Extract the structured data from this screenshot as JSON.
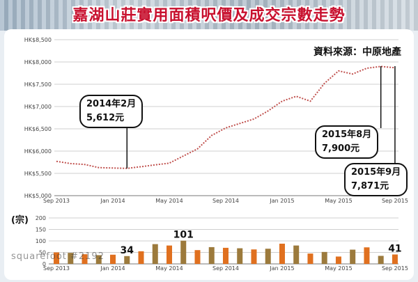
{
  "title": "嘉湖山莊實用面積呎價及成交宗數走勢",
  "source": "資料來源：中原地產",
  "watermark": "squarefoot #2192",
  "unit_label": "(宗)",
  "chart_data": [
    {
      "type": "line",
      "x_ticks": [
        "Sep 2013",
        "Jan 2014",
        "May 2014",
        "Sep 2014",
        "Jan 2015",
        "May 2015",
        "Sep 2015"
      ],
      "y_ticks": [
        "HK$5,000",
        "HK$5,500",
        "HK$6,000",
        "HK$6,500",
        "HK$7,000",
        "HK$7,500",
        "HK$8,000",
        "HK$8,500"
      ],
      "ylim": [
        5000,
        8500
      ],
      "grid": "horizontal",
      "series": [
        {
          "x": [
            "2013-09",
            "2013-10",
            "2013-11",
            "2013-12",
            "2014-01",
            "2014-02",
            "2014-03",
            "2014-04",
            "2014-05",
            "2014-06",
            "2014-07",
            "2014-08",
            "2014-09",
            "2014-10",
            "2014-11",
            "2014-12",
            "2015-01",
            "2015-02",
            "2015-03",
            "2015-04",
            "2015-05",
            "2015-06",
            "2015-07",
            "2015-08",
            "2015-09"
          ],
          "values": [
            5770,
            5720,
            5700,
            5630,
            5620,
            5612,
            5650,
            5690,
            5730,
            5890,
            6050,
            6350,
            6520,
            6620,
            6720,
            6900,
            7120,
            7230,
            7120,
            7520,
            7800,
            7730,
            7860,
            7900,
            7871
          ],
          "color": "#c0504d"
        }
      ],
      "annotations": [
        {
          "line1": "2014年2月",
          "line2": "5,612元",
          "x": "2014-02",
          "value": 5612
        },
        {
          "line1": "2015年8月",
          "line2": "7,900元",
          "x": "2015-08",
          "value": 7900
        },
        {
          "line1": "2015年9月",
          "line2": "7,871元",
          "x": "2015-09",
          "value": 7871
        }
      ]
    },
    {
      "type": "bar",
      "x_ticks": [
        "Sep 2013",
        "Jan 2014",
        "May 2014",
        "Sep 2014",
        "Jan 2015",
        "May 2015",
        "Sep 2015"
      ],
      "y_ticks": [
        "0",
        "50",
        "100",
        "150",
        "200"
      ],
      "ylim": [
        0,
        200
      ],
      "grid": "horizontal",
      "categories": [
        "2013-09",
        "2013-10",
        "2013-11",
        "2013-12",
        "2014-01",
        "2014-02",
        "2014-03",
        "2014-04",
        "2014-05",
        "2014-06",
        "2014-07",
        "2014-08",
        "2014-09",
        "2014-10",
        "2014-11",
        "2014-12",
        "2015-01",
        "2015-02",
        "2015-03",
        "2015-04",
        "2015-05",
        "2015-06",
        "2015-07",
        "2015-08",
        "2015-09"
      ],
      "values": [
        50,
        48,
        42,
        38,
        40,
        34,
        55,
        86,
        80,
        101,
        60,
        73,
        70,
        68,
        63,
        66,
        88,
        80,
        45,
        52,
        32,
        62,
        72,
        35,
        41
      ],
      "colors": [
        "#e0701f",
        "#9c7a3c"
      ],
      "data_labels": [
        {
          "index": 5,
          "text": "34"
        },
        {
          "index": 9,
          "text": "101"
        },
        {
          "index": 24,
          "text": "41"
        }
      ]
    }
  ]
}
